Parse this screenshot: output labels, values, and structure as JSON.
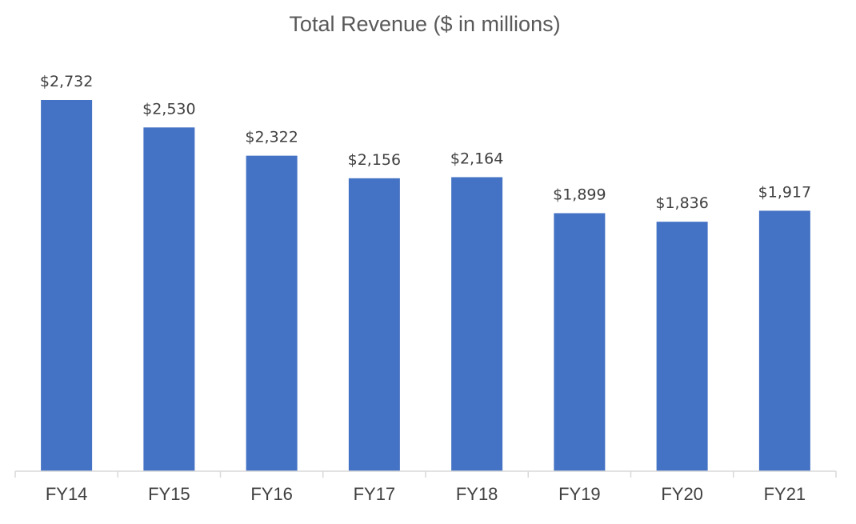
{
  "chart_data": {
    "type": "bar",
    "title": "Total Revenue ($ in millions)",
    "xlabel": "",
    "ylabel": "",
    "categories": [
      "FY14",
      "FY15",
      "FY16",
      "FY17",
      "FY18",
      "FY19",
      "FY20",
      "FY21"
    ],
    "values": [
      2732,
      2530,
      2322,
      2156,
      2164,
      1899,
      1836,
      1917
    ],
    "data_labels": [
      "$2,732",
      "$2,530",
      "$2,322",
      "$2,156",
      "$2,164",
      "$1,899",
      "$1,836",
      "$1,917"
    ],
    "ylim": [
      0,
      2732
    ],
    "bar_color": "#4472c4",
    "grid": false,
    "legend": "none"
  }
}
